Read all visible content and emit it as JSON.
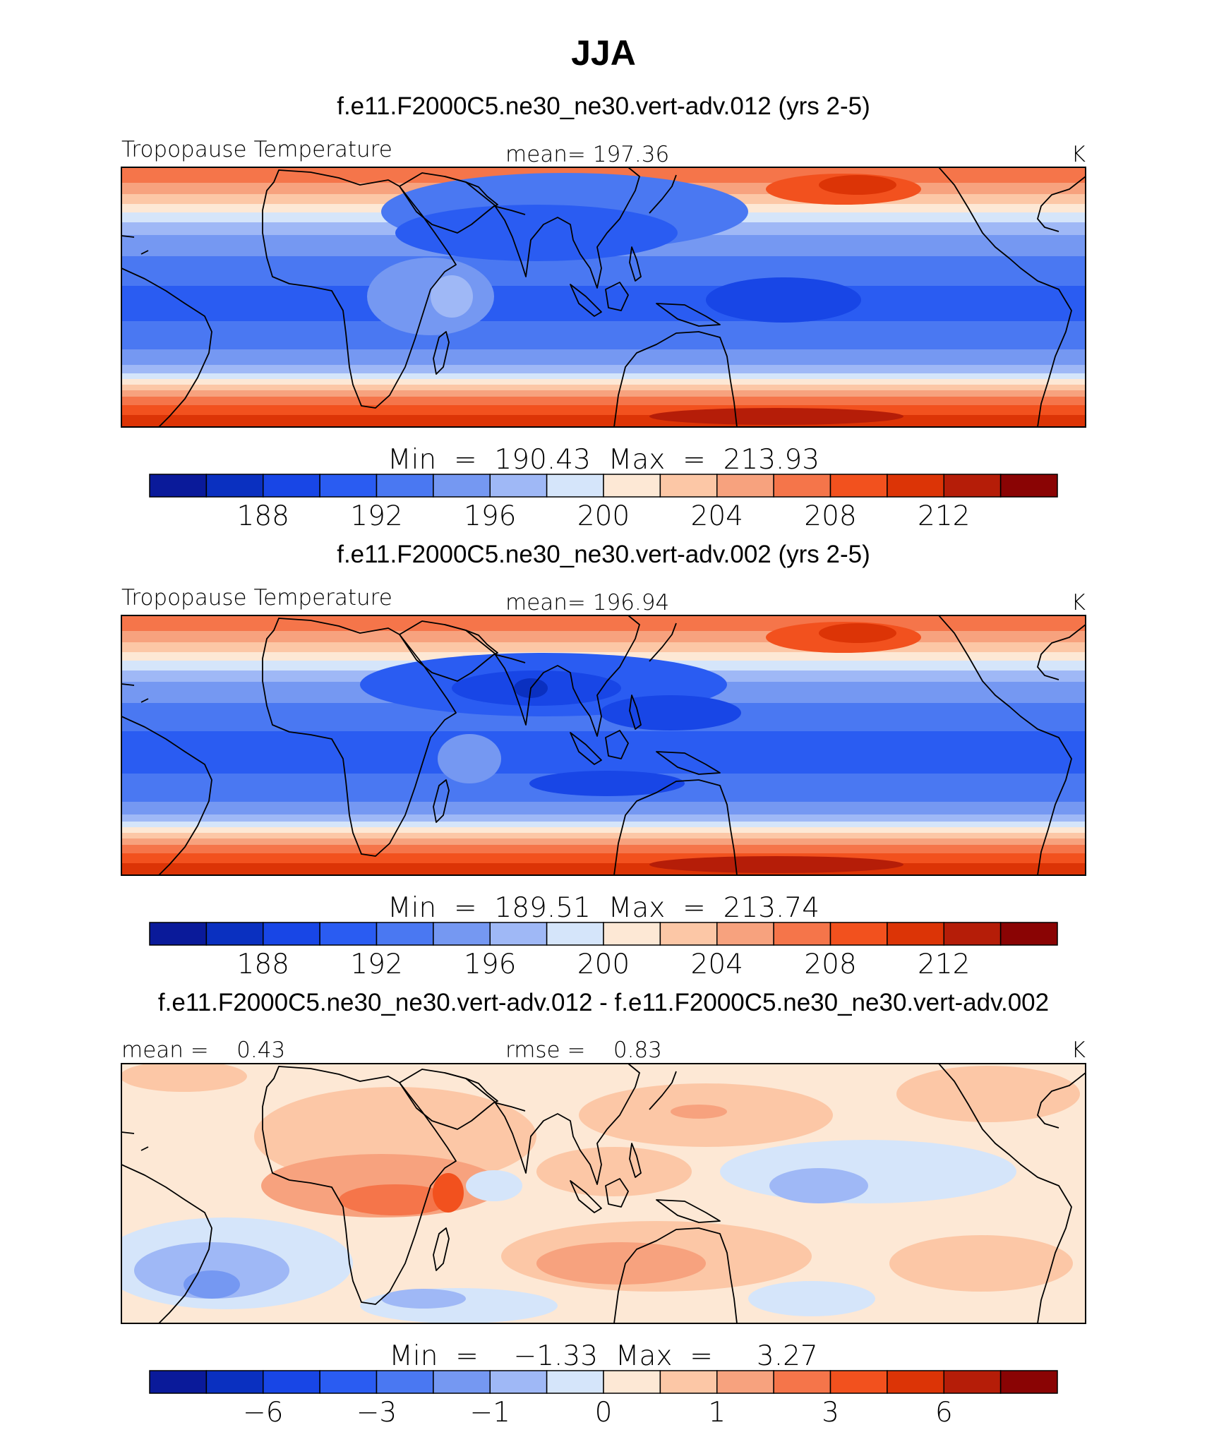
{
  "page": {
    "season_title": "JJA"
  },
  "colors": {
    "temperature_palette": [
      "#0a1a9a",
      "#0a30c0",
      "#1846e6",
      "#2a5cf2",
      "#4a78f2",
      "#7598f2",
      "#9fb8f6",
      "#d5e5fa",
      "#fde8d5",
      "#fcc7a6",
      "#f7a27e",
      "#f5754a",
      "#f2511e",
      "#dc3406",
      "#b51d08",
      "#8a0404"
    ],
    "land_outline": "#000000",
    "bar_border": "#000000"
  },
  "chart_data": [
    {
      "type": "heatmap",
      "title": "f.e11.F2000C5.ne30_ne30.vert-adv.012 (yrs 2-5)",
      "left_label": "Tropopause Temperature",
      "center_label": "mean=  197.36",
      "units": "K",
      "mean": 197.36,
      "min": 190.43,
      "max": 213.93,
      "colorbar_label": "Min  =  190.43  Max  =  213.93",
      "colorbar_levels": [
        186,
        188,
        190,
        192,
        194,
        196,
        198,
        200,
        202,
        204,
        206,
        208,
        210,
        212,
        214
      ],
      "colorbar_tick_labels": [
        "188",
        "192",
        "196",
        "200",
        "204",
        "208",
        "212"
      ],
      "colorbar_tick_slots": [
        2,
        4,
        6,
        8,
        10,
        12,
        14
      ]
    },
    {
      "type": "heatmap",
      "title": "f.e11.F2000C5.ne30_ne30.vert-adv.002 (yrs 2-5)",
      "left_label": "Tropopause Temperature",
      "center_label": "mean=  196.94",
      "units": "K",
      "mean": 196.94,
      "min": 189.51,
      "max": 213.74,
      "colorbar_label": "Min  =  189.51  Max  =  213.74",
      "colorbar_levels": [
        186,
        188,
        190,
        192,
        194,
        196,
        198,
        200,
        202,
        204,
        206,
        208,
        210,
        212,
        214
      ],
      "colorbar_tick_labels": [
        "188",
        "192",
        "196",
        "200",
        "204",
        "208",
        "212"
      ],
      "colorbar_tick_slots": [
        2,
        4,
        6,
        8,
        10,
        12,
        14
      ]
    },
    {
      "type": "heatmap",
      "title": "f.e11.F2000C5.ne30_ne30.vert-adv.012 - f.e11.F2000C5.ne30_ne30.vert-adv.002",
      "left_label": "mean =    0.43",
      "center_label": "rmse =    0.83",
      "units": "K",
      "mean": 0.43,
      "rmse": 0.83,
      "min": -1.33,
      "max": 3.27,
      "colorbar_label": "Min  =    −1.33  Max  =     3.27",
      "colorbar_tick_labels": [
        "−6",
        "−3",
        "−1",
        "0",
        "1",
        "3",
        "6"
      ],
      "colorbar_tick_slots": [
        2,
        4,
        6,
        8,
        10,
        12,
        14
      ]
    }
  ]
}
